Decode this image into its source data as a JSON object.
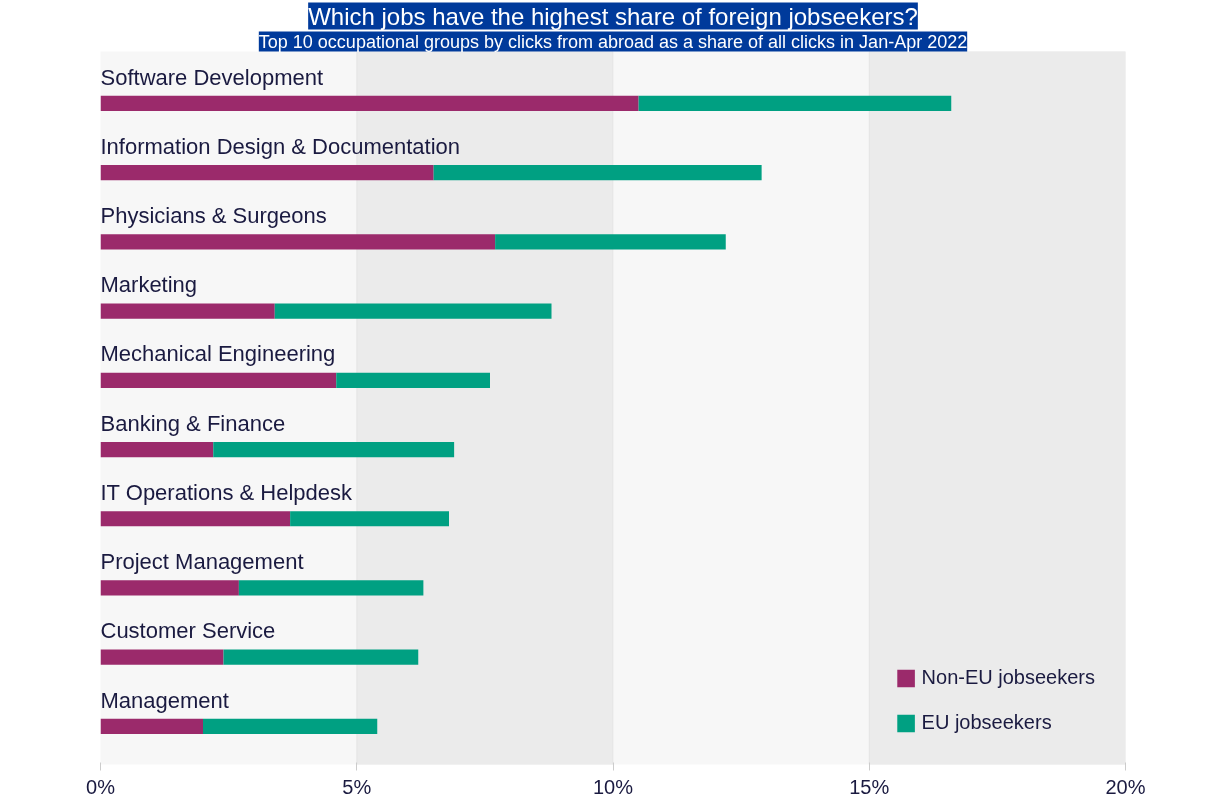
{
  "chart_data": {
    "type": "bar",
    "orientation": "horizontal",
    "stacked": true,
    "title": "Which jobs have the highest share of foreign jobseekers?",
    "subtitle": "Top 10 occupational groups by clicks from abroad as a share of all clicks in Jan-Apr 2022",
    "categories": [
      "Software Development",
      "Information Design & Documentation",
      "Physicians & Surgeons",
      "Marketing",
      "Mechanical Engineering",
      "Banking & Finance",
      "IT Operations & Helpdesk",
      "Project Management",
      "Customer Service",
      "Management"
    ],
    "series": [
      {
        "name": "Non-EU jobseekers",
        "color": "#9b2a6b",
        "values": [
          10.5,
          6.5,
          7.7,
          3.4,
          4.6,
          2.2,
          3.7,
          2.7,
          2.4,
          2.0
        ]
      },
      {
        "name": "EU jobseekers",
        "color": "#00a082",
        "values": [
          6.1,
          6.4,
          4.5,
          5.4,
          3.0,
          4.7,
          3.1,
          3.6,
          3.8,
          3.4
        ]
      }
    ],
    "xlim": [
      0,
      20
    ],
    "xticks": [
      {
        "value": 0,
        "label": "0%"
      },
      {
        "value": 5,
        "label": "5%"
      },
      {
        "value": 10,
        "label": "10%"
      },
      {
        "value": 15,
        "label": "15%"
      },
      {
        "value": 20,
        "label": "20%"
      }
    ],
    "bands": [
      {
        "axis": "x",
        "from": 5,
        "to": 10,
        "color": "#ebebeb"
      },
      {
        "axis": "x",
        "from": 15,
        "to": 20,
        "color": "#ebebeb"
      }
    ],
    "grid": false,
    "legend": "bottom right"
  }
}
